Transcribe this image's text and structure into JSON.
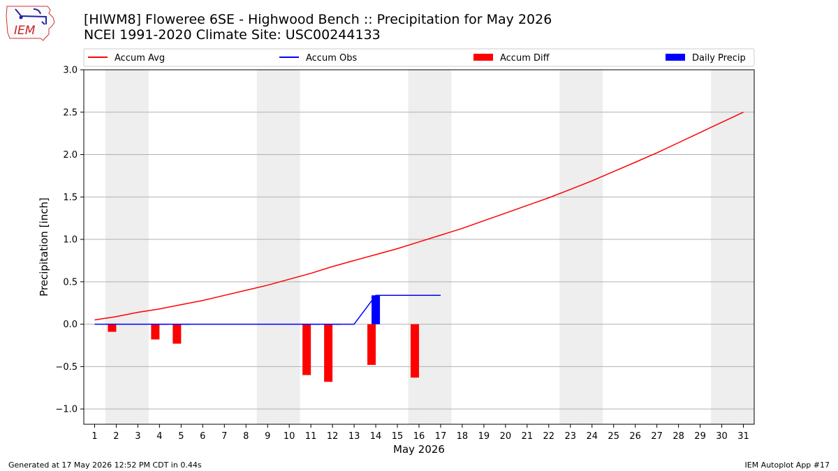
{
  "header": {
    "logo_text": "IEM",
    "title_line1": "[HIWM8] Floweree 6SE - Highwood Bench :: Precipitation for May 2026",
    "title_line2": "NCEI 1991-2020 Climate Site: USC00244133"
  },
  "footer": {
    "left": "Generated at 17 May 2026 12:52 PM CDT in 0.44s",
    "right": "IEM Autoplot App #17"
  },
  "chart_data": {
    "type": "bar",
    "xlabel": "May 2026",
    "ylabel": "Precipitation [inch]",
    "xlim": [
      0.5,
      31.5
    ],
    "ylim": [
      -1.18,
      3.0
    ],
    "yticks": [
      -1.0,
      -0.5,
      0.0,
      0.5,
      1.0,
      1.5,
      2.0,
      2.5,
      3.0
    ],
    "ytick_labels": [
      "−1.0",
      "−0.5",
      "0.0",
      "0.5",
      "1.0",
      "1.5",
      "2.0",
      "2.5",
      "3.0"
    ],
    "xticks": [
      1,
      2,
      3,
      4,
      5,
      6,
      7,
      8,
      9,
      10,
      11,
      12,
      13,
      14,
      15,
      16,
      17,
      18,
      19,
      20,
      21,
      22,
      23,
      24,
      25,
      26,
      27,
      28,
      29,
      30,
      31
    ],
    "weekend_shading": [
      [
        1.5,
        3.5
      ],
      [
        8.5,
        10.5
      ],
      [
        15.5,
        17.5
      ],
      [
        22.5,
        24.5
      ],
      [
        29.5,
        31.5
      ]
    ],
    "grid": "horizontal",
    "legend": {
      "position": "top",
      "items": [
        {
          "label": "Accum Avg",
          "kind": "line",
          "color": "#ff0000"
        },
        {
          "label": "Accum Obs",
          "kind": "line",
          "color": "#0000ff"
        },
        {
          "label": "Accum Diff",
          "kind": "bar",
          "color": "#ff0000"
        },
        {
          "label": "Daily Precip",
          "kind": "bar",
          "color": "#0000ff"
        }
      ]
    },
    "accum_avg": {
      "days": [
        1,
        2,
        3,
        4,
        5,
        6,
        7,
        8,
        9,
        10,
        11,
        12,
        13,
        14,
        15,
        16,
        17,
        18,
        19,
        20,
        21,
        22,
        23,
        24,
        25,
        26,
        27,
        28,
        29,
        30,
        31
      ],
      "values": [
        0.05,
        0.09,
        0.14,
        0.18,
        0.23,
        0.28,
        0.34,
        0.4,
        0.46,
        0.53,
        0.6,
        0.68,
        0.75,
        0.82,
        0.89,
        0.97,
        1.05,
        1.13,
        1.22,
        1.31,
        1.4,
        1.49,
        1.59,
        1.69,
        1.8,
        1.91,
        2.02,
        2.14,
        2.26,
        2.38,
        2.5
      ],
      "color": "#ff0000"
    },
    "accum_obs": {
      "days": [
        1,
        2,
        3,
        4,
        5,
        6,
        7,
        8,
        9,
        10,
        11,
        12,
        13,
        14,
        15,
        16,
        17
      ],
      "values": [
        0,
        0,
        0,
        0,
        0,
        0,
        0,
        0,
        0,
        0,
        0,
        0,
        0,
        0.34,
        0.34,
        0.34,
        0.34
      ],
      "color": "#0000ff"
    },
    "accum_diff": {
      "days": [
        2,
        4,
        5,
        11,
        12,
        14,
        16
      ],
      "values": [
        -0.09,
        -0.18,
        -0.23,
        -0.6,
        -0.68,
        -0.48,
        -0.63
      ],
      "color": "#ff0000"
    },
    "obs_bars": {
      "days": [
        4,
        5,
        11,
        12
      ],
      "values": [
        0.005,
        0.005,
        0.005,
        0.005
      ],
      "color": "#0000ff"
    },
    "daily_precip": {
      "days": [
        14
      ],
      "values": [
        0.34
      ],
      "color": "#0000ff"
    }
  }
}
